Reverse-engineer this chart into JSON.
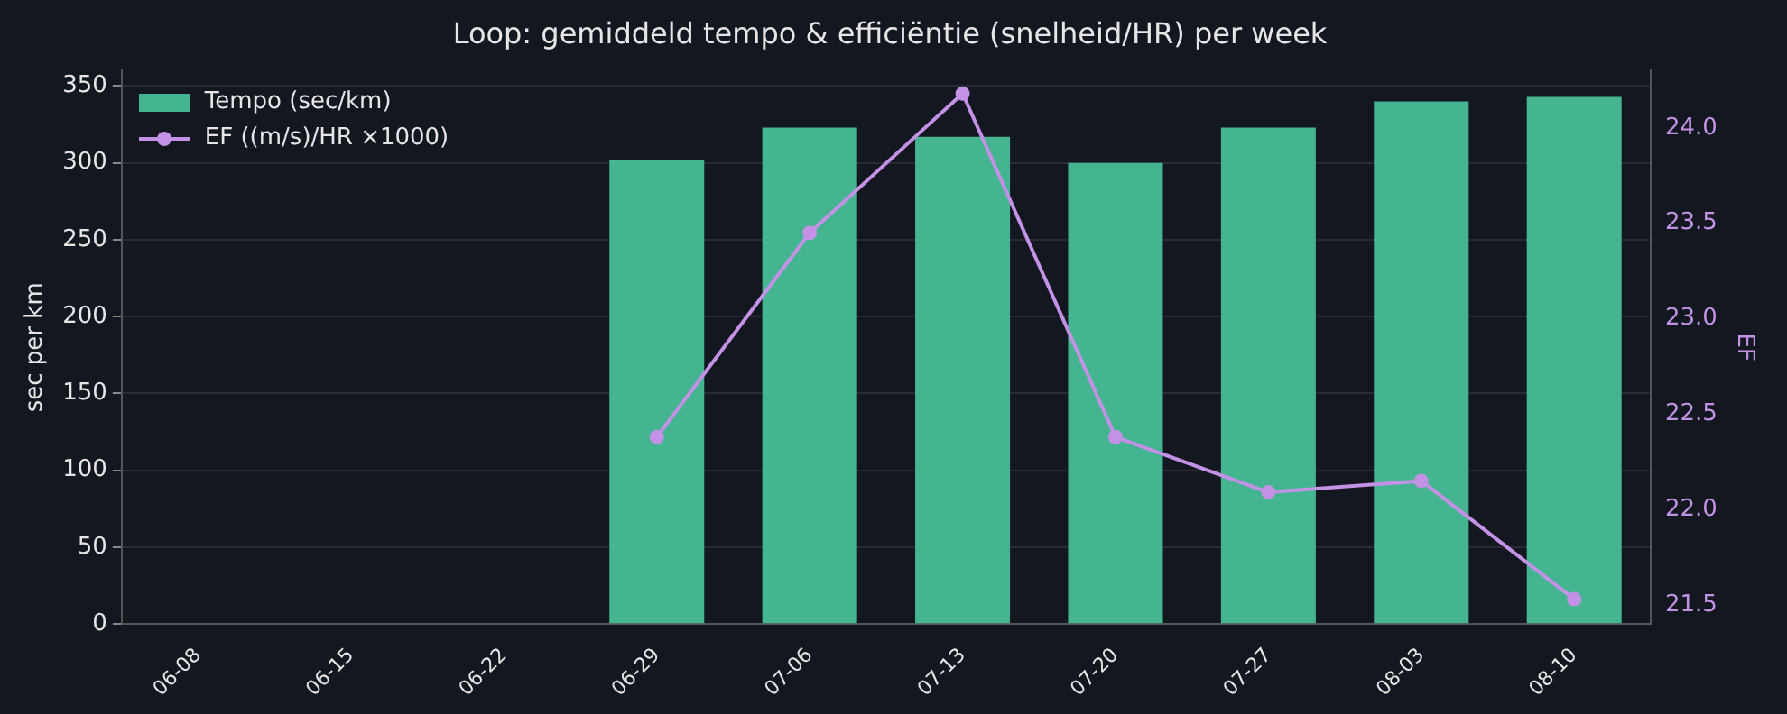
{
  "chart_data": {
    "type": "bar",
    "title": "Loop: gemiddeld tempo & efficiëntie (snelheid/HR) per week",
    "categories": [
      "06-08",
      "06-15",
      "06-22",
      "06-29",
      "07-06",
      "07-13",
      "07-20",
      "07-27",
      "08-03",
      "08-10"
    ],
    "series": [
      {
        "name": "Tempo (sec/km)",
        "color": "#44b590",
        "values": [
          null,
          null,
          null,
          302,
          323,
          317,
          300,
          323,
          340,
          343
        ]
      },
      {
        "name": "EF ((m/s)/HR ×1000)",
        "type": "line",
        "axis": "y2",
        "color": "#c391e6",
        "marker": "circle",
        "values": [
          null,
          null,
          null,
          22.38,
          23.45,
          24.18,
          22.38,
          22.09,
          22.15,
          21.53
        ]
      }
    ],
    "ylabel": "sec per km",
    "y2label": "EF",
    "ylim": [
      0,
      360
    ],
    "yticks": [
      0,
      50,
      100,
      150,
      200,
      250,
      300,
      350
    ],
    "y2lim": [
      21.4,
      24.3
    ],
    "y2ticks": [
      {
        "value": 21.5,
        "label": "21.5"
      },
      {
        "value": 22,
        "label": "22.0"
      },
      {
        "value": 22.5,
        "label": "22.5"
      },
      {
        "value": 23,
        "label": "23.0"
      },
      {
        "value": 23.5,
        "label": "23.5"
      },
      {
        "value": 24,
        "label": "24.0"
      }
    ],
    "grid": "y",
    "legend": "top left"
  }
}
